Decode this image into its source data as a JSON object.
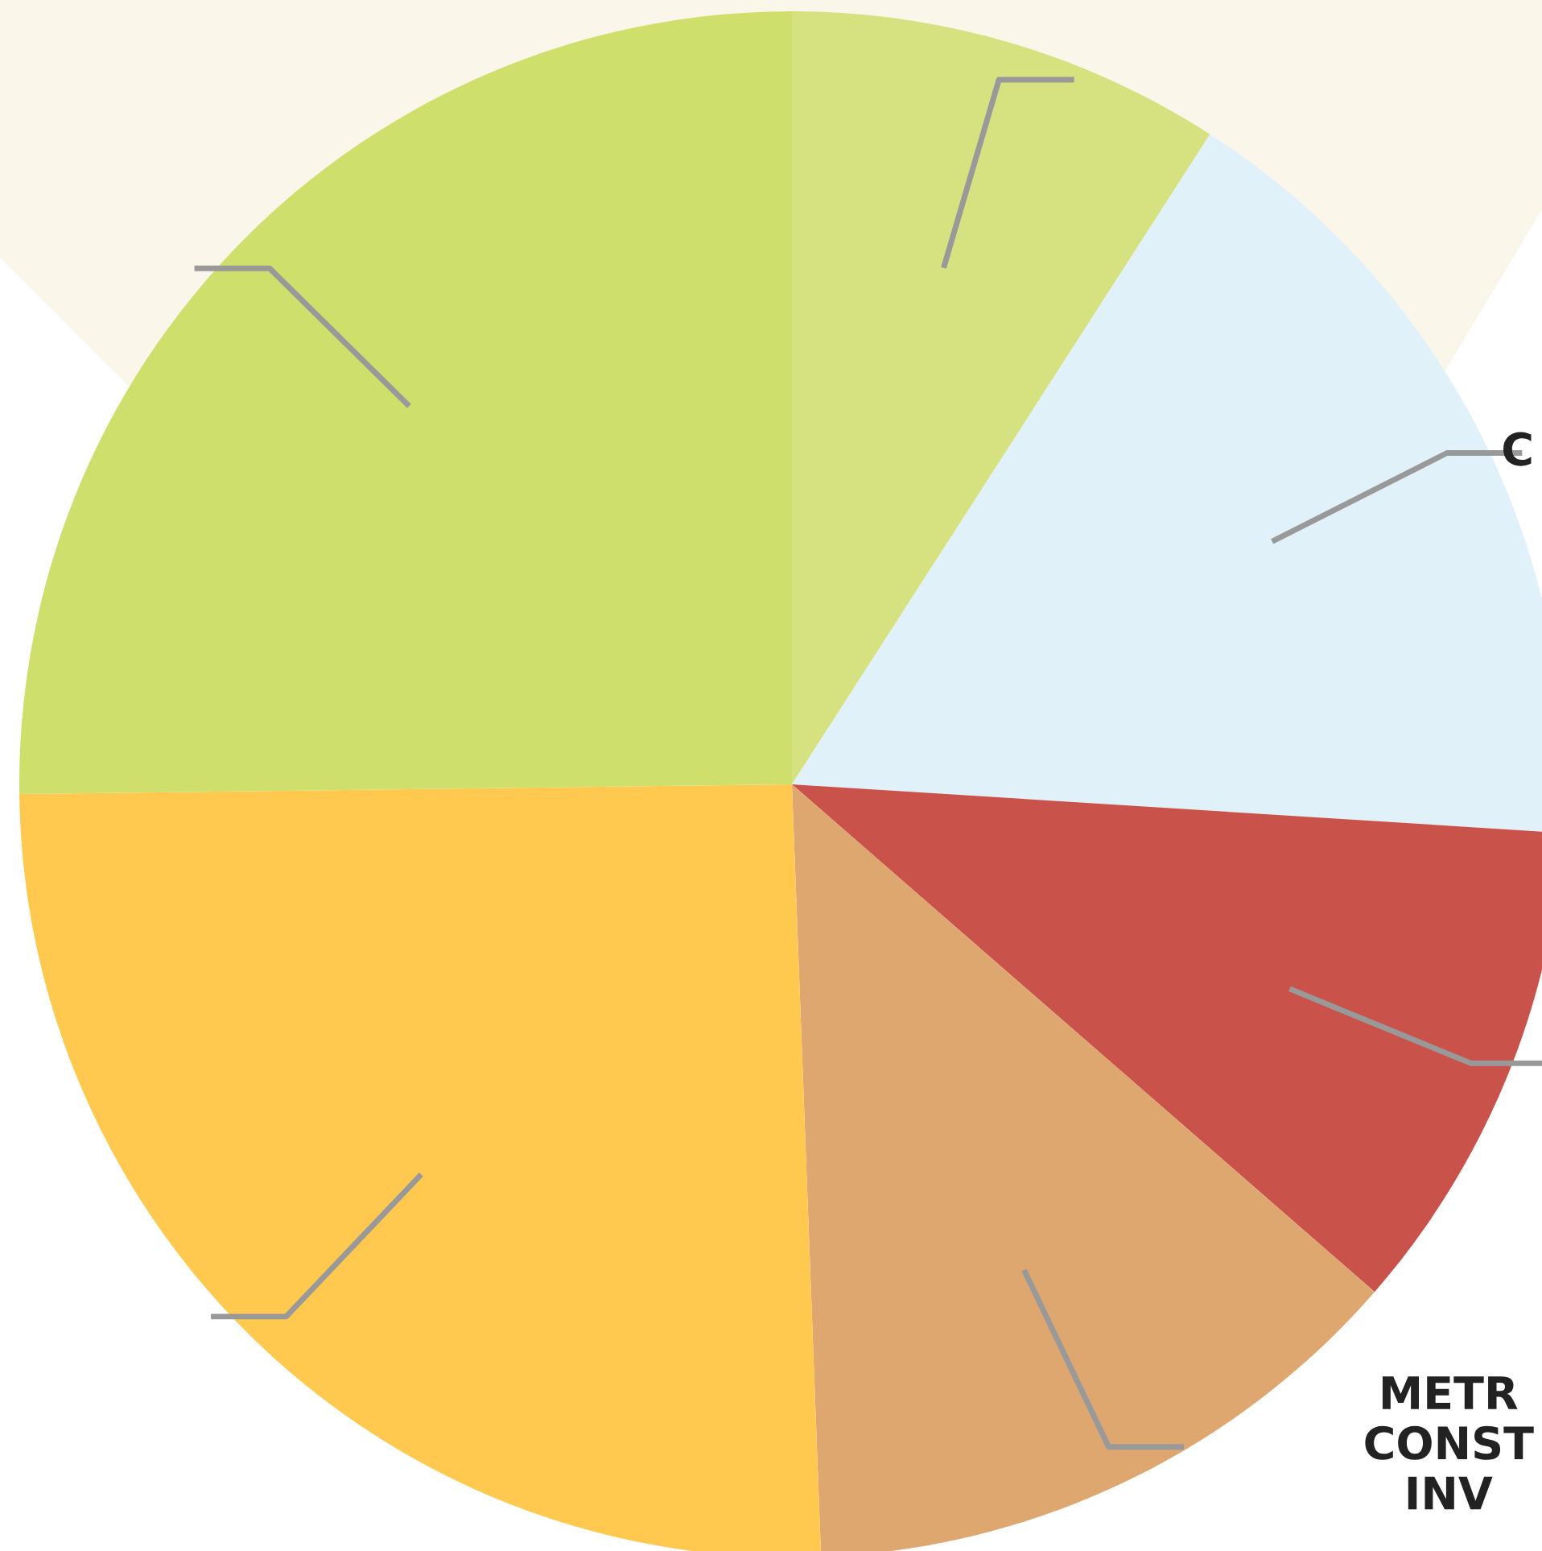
{
  "chart_data": {
    "type": "pie",
    "categories": [
      null,
      "C",
      null,
      "METR\nCONST\nINV",
      null,
      null
    ],
    "values": [
      9.1,
      16.9,
      10.4,
      13.0,
      25.4,
      25.2
    ],
    "colors": [
      "#d5e27f",
      "#e1f1fa",
      "#c9534a",
      "#dea770",
      "#fec94e",
      "#cfdf6c"
    ],
    "legend": false
  }
}
